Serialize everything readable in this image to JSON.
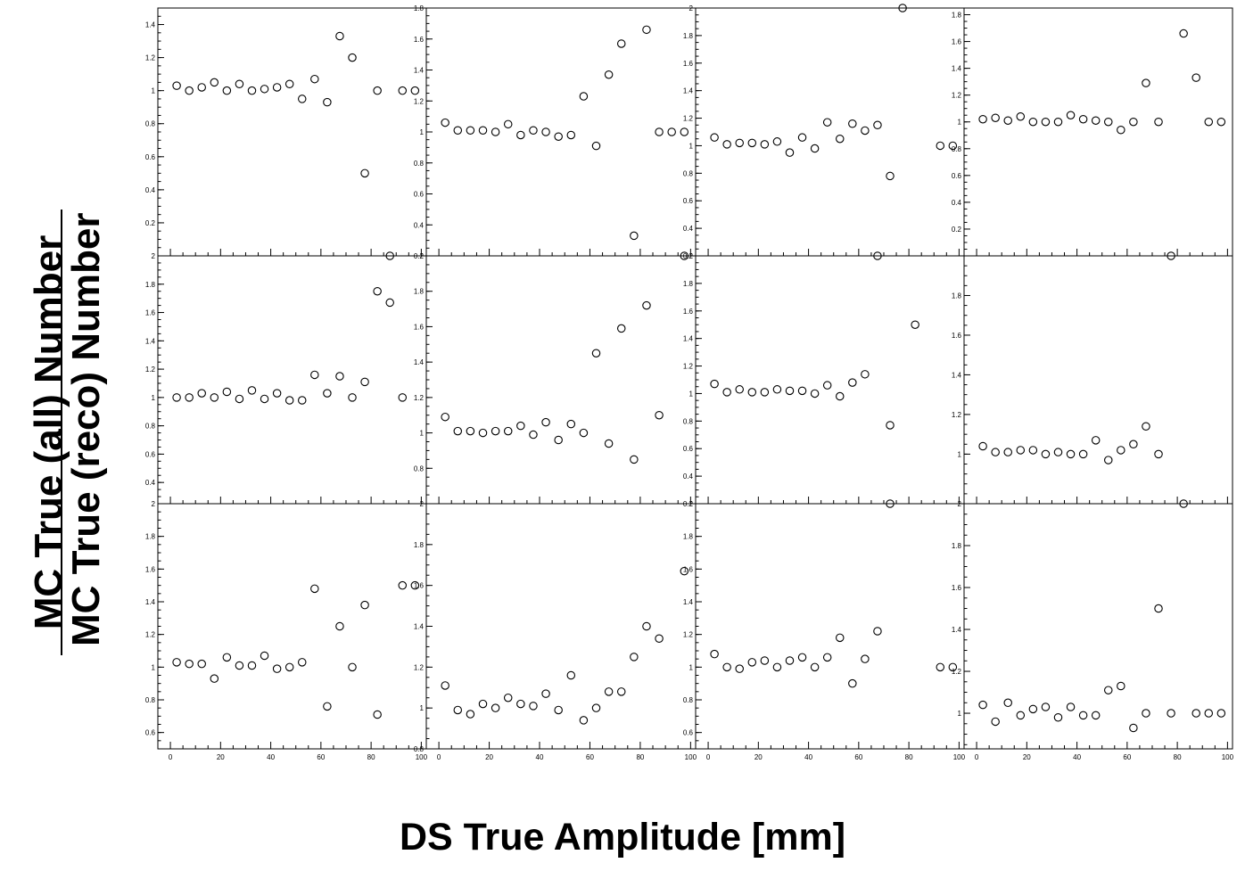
{
  "figure": {
    "x_title": "DS True Amplitude [mm]",
    "y_title_numerator": "MC True (all) Number",
    "y_title_denominator": "MC True (reco) Number",
    "x_tick_labels": [
      "0",
      "20",
      "40",
      "60",
      "80",
      "100"
    ],
    "marker": "open-circle",
    "color": "#000000"
  },
  "chart_data": [
    {
      "type": "scatter",
      "ylim": [
        0,
        1.5
      ],
      "yticks": [
        0.2,
        0.4,
        0.6,
        0.8,
        1,
        1.2,
        1.4
      ],
      "xlim": [
        -5,
        102
      ],
      "x": [
        2.5,
        7.5,
        12.5,
        17.5,
        22.5,
        27.5,
        32.5,
        37.5,
        42.5,
        47.5,
        52.5,
        57.5,
        62.5,
        67.5,
        72.5,
        77.5,
        82.5,
        87.5,
        92.5,
        97.5
      ],
      "y": [
        1.03,
        1.0,
        1.02,
        1.05,
        1.0,
        1.04,
        1.0,
        1.01,
        1.02,
        1.04,
        0.95,
        1.07,
        0.93,
        1.33,
        1.2,
        0.5,
        1.0,
        0.0,
        1.0,
        1.0
      ]
    },
    {
      "type": "scatter",
      "ylim": [
        0.2,
        1.8
      ],
      "yticks": [
        0.2,
        0.4,
        0.6,
        0.8,
        1,
        1.2,
        1.4,
        1.6,
        1.8
      ],
      "xlim": [
        -5,
        102
      ],
      "x": [
        2.5,
        7.5,
        12.5,
        17.5,
        22.5,
        27.5,
        32.5,
        37.5,
        42.5,
        47.5,
        52.5,
        57.5,
        62.5,
        67.5,
        72.5,
        77.5,
        82.5,
        87.5,
        92.5,
        97.5
      ],
      "y": [
        1.06,
        1.01,
        1.01,
        1.01,
        1.0,
        1.05,
        0.98,
        1.01,
        1.0,
        0.97,
        0.98,
        1.23,
        0.91,
        1.37,
        1.57,
        0.33,
        1.66,
        1.0,
        1.0,
        1.0
      ]
    },
    {
      "type": "scatter",
      "ylim": [
        0.2,
        2
      ],
      "yticks": [
        0.2,
        0.4,
        0.6,
        0.8,
        1,
        1.2,
        1.4,
        1.6,
        1.8,
        2
      ],
      "xlim": [
        -5,
        102
      ],
      "x": [
        2.5,
        7.5,
        12.5,
        17.5,
        22.5,
        27.5,
        32.5,
        37.5,
        42.5,
        47.5,
        52.5,
        57.5,
        62.5,
        67.5,
        72.5,
        77.5,
        82.5,
        87.5,
        92.5,
        97.5
      ],
      "y": [
        1.06,
        1.01,
        1.02,
        1.02,
        1.01,
        1.03,
        0.95,
        1.06,
        0.98,
        1.17,
        1.05,
        1.16,
        1.11,
        1.15,
        0.78,
        2.0,
        null,
        null,
        1.0,
        1.0
      ]
    },
    {
      "type": "scatter",
      "ylim": [
        0,
        1.85
      ],
      "yticks": [
        0.2,
        0.4,
        0.6,
        0.8,
        1,
        1.2,
        1.4,
        1.6,
        1.8
      ],
      "xlim": [
        -5,
        102
      ],
      "x": [
        2.5,
        7.5,
        12.5,
        17.5,
        22.5,
        27.5,
        32.5,
        37.5,
        42.5,
        47.5,
        52.5,
        57.5,
        62.5,
        67.5,
        72.5,
        77.5,
        82.5,
        87.5,
        92.5,
        97.5
      ],
      "y": [
        1.02,
        1.03,
        1.01,
        1.04,
        1.0,
        1.0,
        1.0,
        1.05,
        1.02,
        1.01,
        1.0,
        0.94,
        1.0,
        1.29,
        1.0,
        0.0,
        1.66,
        1.33,
        1.0,
        1.0
      ]
    },
    {
      "type": "scatter",
      "ylim": [
        0.25,
        2
      ],
      "yticks": [
        0.4,
        0.6,
        0.8,
        1,
        1.2,
        1.4,
        1.6,
        1.8,
        2
      ],
      "xlim": [
        -5,
        102
      ],
      "x": [
        2.5,
        7.5,
        12.5,
        17.5,
        22.5,
        27.5,
        32.5,
        37.5,
        42.5,
        47.5,
        52.5,
        57.5,
        62.5,
        67.5,
        72.5,
        77.5,
        82.5,
        87.5,
        92.5,
        97.5
      ],
      "y": [
        1.0,
        1.0,
        1.03,
        1.0,
        1.04,
        0.99,
        1.05,
        0.99,
        1.03,
        0.98,
        0.98,
        1.16,
        1.03,
        1.15,
        1.0,
        1.11,
        1.75,
        1.67,
        1.0,
        null
      ]
    },
    {
      "type": "scatter",
      "ylim": [
        0.6,
        2
      ],
      "yticks": [
        0.8,
        1,
        1.2,
        1.4,
        1.6,
        1.8,
        2
      ],
      "xlim": [
        -5,
        102
      ],
      "x": [
        2.5,
        7.5,
        12.5,
        17.5,
        22.5,
        27.5,
        32.5,
        37.5,
        42.5,
        47.5,
        52.5,
        57.5,
        62.5,
        67.5,
        72.5,
        77.5,
        82.5,
        87.5,
        92.5,
        97.5
      ],
      "y": [
        1.09,
        1.01,
        1.01,
        1.0,
        1.01,
        1.01,
        1.04,
        0.99,
        1.06,
        0.96,
        1.05,
        1.0,
        1.45,
        0.94,
        1.59,
        0.85,
        1.72,
        1.1,
        null,
        2.0
      ]
    },
    {
      "type": "scatter",
      "ylim": [
        0.2,
        2
      ],
      "yticks": [
        0.2,
        0.4,
        0.6,
        0.8,
        1,
        1.2,
        1.4,
        1.6,
        1.8,
        2
      ],
      "xlim": [
        -5,
        102
      ],
      "x": [
        2.5,
        7.5,
        12.5,
        17.5,
        22.5,
        27.5,
        32.5,
        37.5,
        42.5,
        47.5,
        52.5,
        57.5,
        62.5,
        67.5,
        72.5,
        77.5,
        82.5,
        87.5,
        92.5,
        97.5
      ],
      "y": [
        1.07,
        1.01,
        1.03,
        1.01,
        1.01,
        1.03,
        1.02,
        1.02,
        1.0,
        1.06,
        0.98,
        1.08,
        1.14,
        2.0,
        0.77,
        null,
        1.5,
        null,
        null,
        null
      ]
    },
    {
      "type": "scatter",
      "ylim": [
        0.75,
        2
      ],
      "yticks": [
        1,
        1.2,
        1.4,
        1.6,
        1.8
      ],
      "xlim": [
        -5,
        102
      ],
      "x": [
        2.5,
        7.5,
        12.5,
        17.5,
        22.5,
        27.5,
        32.5,
        37.5,
        42.5,
        47.5,
        52.5,
        57.5,
        62.5,
        67.5,
        72.5,
        77.5,
        82.5,
        87.5,
        92.5,
        97.5
      ],
      "y": [
        1.04,
        1.01,
        1.01,
        1.02,
        1.02,
        1.0,
        1.01,
        1.0,
        1.0,
        1.07,
        0.97,
        1.02,
        1.05,
        1.14,
        1.0,
        null,
        null,
        null,
        null,
        null
      ]
    },
    {
      "type": "scatter",
      "ylim": [
        0.5,
        2
      ],
      "yticks": [
        0.6,
        0.8,
        1,
        1.2,
        1.4,
        1.6,
        1.8,
        2
      ],
      "xlim": [
        -5,
        102
      ],
      "x": [
        2.5,
        7.5,
        12.5,
        17.5,
        22.5,
        27.5,
        32.5,
        37.5,
        42.5,
        47.5,
        52.5,
        57.5,
        62.5,
        67.5,
        72.5,
        77.5,
        82.5,
        87.5,
        92.5,
        97.5
      ],
      "y": [
        1.03,
        1.02,
        1.02,
        0.93,
        1.06,
        1.01,
        1.01,
        1.07,
        0.99,
        1.0,
        1.03,
        1.48,
        0.76,
        1.25,
        1.0,
        1.38,
        0.71,
        null,
        1.5,
        1.5
      ]
    },
    {
      "type": "scatter",
      "ylim": [
        0.8,
        2
      ],
      "yticks": [
        0.8,
        1,
        1.2,
        1.4,
        1.6,
        1.8,
        2
      ],
      "xlim": [
        -5,
        102
      ],
      "x": [
        2.5,
        7.5,
        12.5,
        17.5,
        22.5,
        27.5,
        32.5,
        37.5,
        42.5,
        47.5,
        52.5,
        57.5,
        62.5,
        67.5,
        72.5,
        77.5,
        82.5,
        87.5,
        92.5,
        97.5
      ],
      "y": [
        1.11,
        0.99,
        0.97,
        1.02,
        1.0,
        1.05,
        1.02,
        1.01,
        1.07,
        0.99,
        1.16,
        0.94,
        1.0,
        1.08,
        1.08,
        1.25,
        1.4,
        1.34,
        null,
        1.67
      ]
    },
    {
      "type": "scatter",
      "ylim": [
        0.5,
        2
      ],
      "yticks": [
        0.6,
        0.8,
        1,
        1.2,
        1.4,
        1.6,
        1.8,
        2
      ],
      "xlim": [
        -5,
        102
      ],
      "x": [
        2.5,
        7.5,
        12.5,
        17.5,
        22.5,
        27.5,
        32.5,
        37.5,
        42.5,
        47.5,
        52.5,
        57.5,
        62.5,
        67.5,
        72.5,
        77.5,
        82.5,
        87.5,
        92.5,
        97.5
      ],
      "y": [
        1.08,
        1.0,
        0.99,
        1.03,
        1.04,
        1.0,
        1.04,
        1.06,
        1.0,
        1.06,
        1.18,
        0.9,
        1.05,
        1.22,
        2.0,
        null,
        null,
        null,
        1.0,
        1.0
      ]
    },
    {
      "type": "scatter",
      "ylim": [
        0.83,
        2
      ],
      "yticks": [
        1,
        1.2,
        1.4,
        1.6,
        1.8,
        2
      ],
      "xlim": [
        -5,
        102
      ],
      "x": [
        2.5,
        7.5,
        12.5,
        17.5,
        22.5,
        27.5,
        32.5,
        37.5,
        42.5,
        47.5,
        52.5,
        57.5,
        62.5,
        67.5,
        72.5,
        77.5,
        82.5,
        87.5,
        92.5,
        97.5
      ],
      "y": [
        1.04,
        0.96,
        1.05,
        0.99,
        1.02,
        1.03,
        0.98,
        1.03,
        0.99,
        0.99,
        1.11,
        1.13,
        0.93,
        1.0,
        1.5,
        1.0,
        2.0,
        1.0,
        1.0,
        1.0
      ]
    }
  ]
}
